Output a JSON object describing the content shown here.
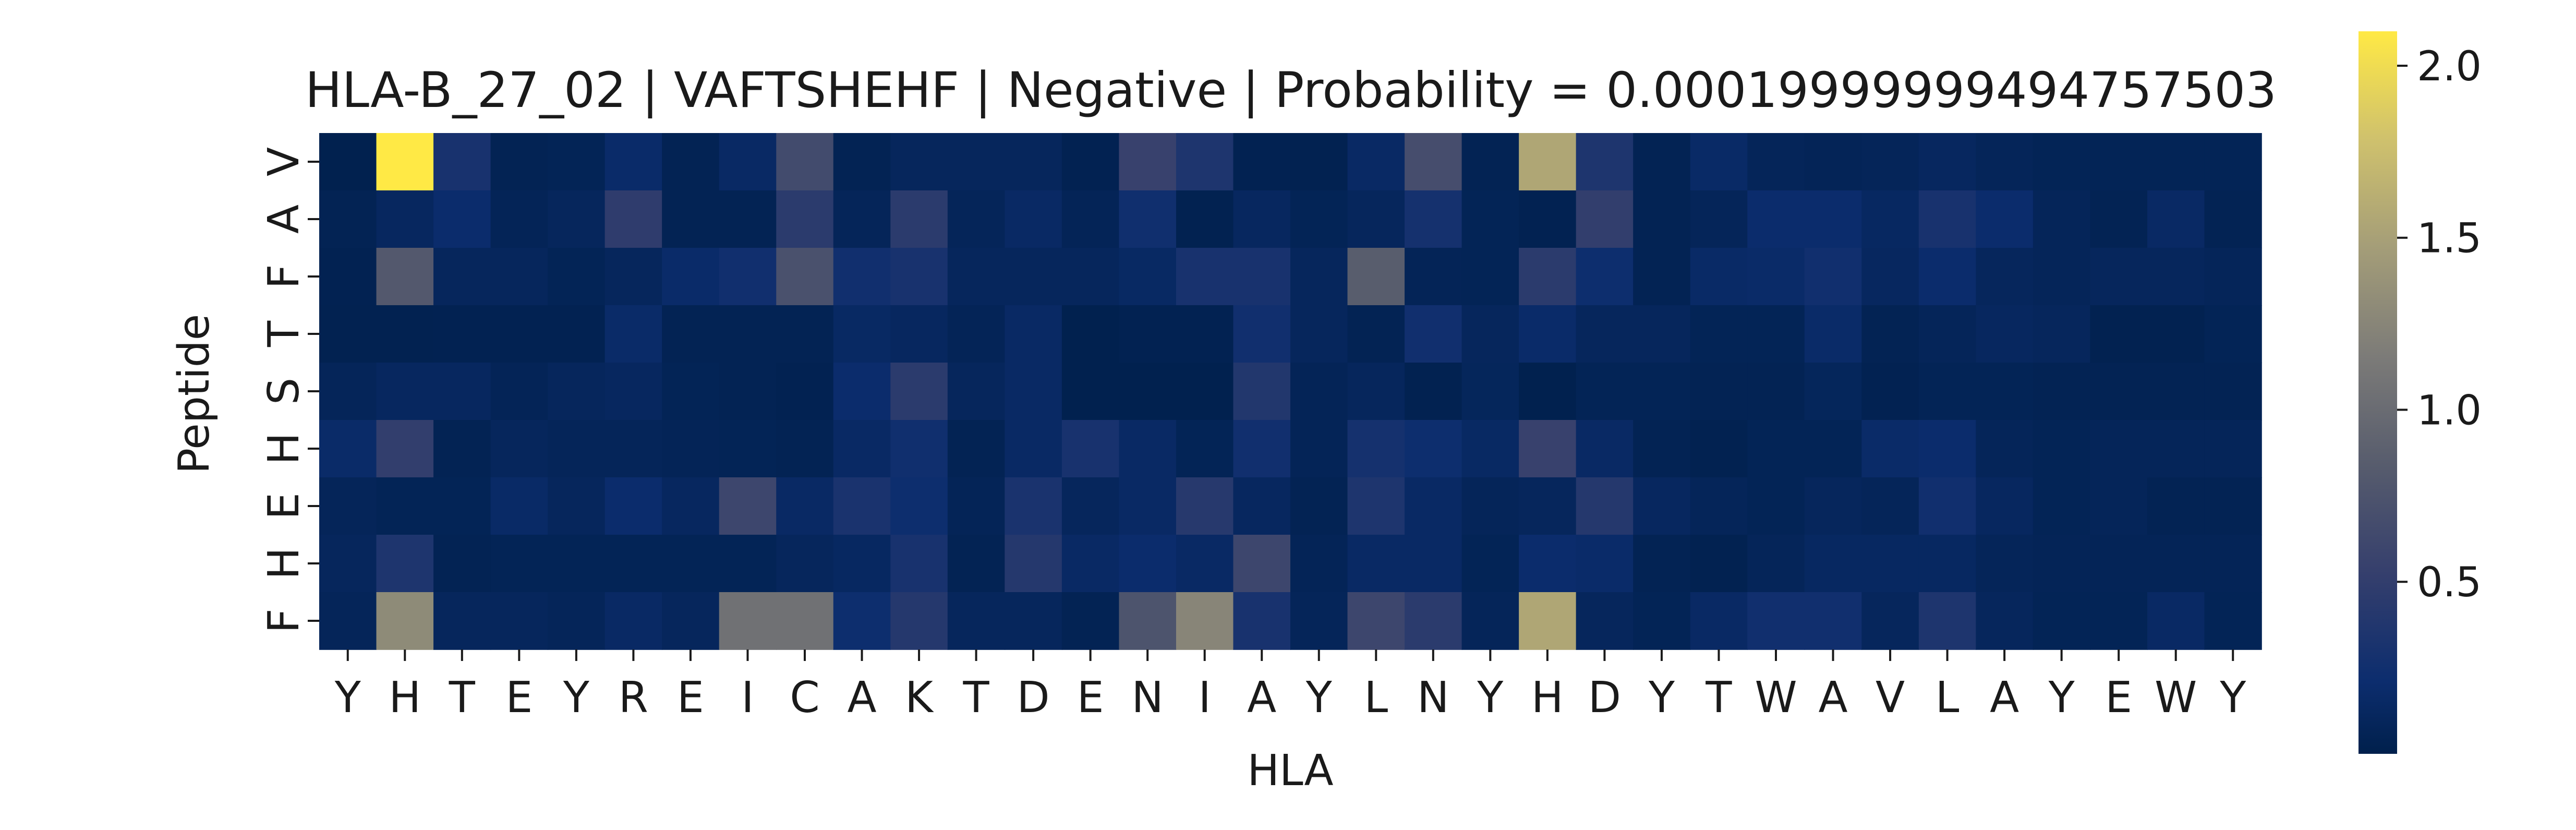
{
  "chart_data": {
    "type": "heatmap",
    "title": "HLA-B_27_02 | VAFTSHEHF | Negative | Probability = 0.00019999999494757503",
    "xlabel": "HLA",
    "ylabel": "Peptide",
    "x_categories": [
      "Y",
      "H",
      "T",
      "E",
      "Y",
      "R",
      "E",
      "I",
      "C",
      "A",
      "K",
      "T",
      "D",
      "E",
      "N",
      "I",
      "A",
      "Y",
      "L",
      "N",
      "Y",
      "H",
      "D",
      "Y",
      "T",
      "W",
      "A",
      "V",
      "L",
      "A",
      "Y",
      "E",
      "W",
      "Y"
    ],
    "y_categories": [
      "V",
      "A",
      "F",
      "T",
      "S",
      "H",
      "E",
      "H",
      "F"
    ],
    "values": [
      [
        0.02,
        2.1,
        0.3,
        0.05,
        0.06,
        0.18,
        0.05,
        0.15,
        0.65,
        0.05,
        0.1,
        0.1,
        0.1,
        0.04,
        0.55,
        0.35,
        0.04,
        0.03,
        0.15,
        0.68,
        0.05,
        1.55,
        0.35,
        0.05,
        0.16,
        0.08,
        0.07,
        0.08,
        0.12,
        0.08,
        0.06,
        0.06,
        0.06,
        0.06
      ],
      [
        0.05,
        0.12,
        0.2,
        0.07,
        0.1,
        0.48,
        0.05,
        0.05,
        0.45,
        0.08,
        0.45,
        0.08,
        0.15,
        0.07,
        0.24,
        0.03,
        0.12,
        0.06,
        0.1,
        0.28,
        0.06,
        0.04,
        0.5,
        0.05,
        0.08,
        0.2,
        0.2,
        0.13,
        0.3,
        0.2,
        0.08,
        0.05,
        0.15,
        0.05
      ],
      [
        0.04,
        0.8,
        0.1,
        0.1,
        0.06,
        0.1,
        0.18,
        0.25,
        0.72,
        0.25,
        0.3,
        0.1,
        0.1,
        0.1,
        0.14,
        0.3,
        0.3,
        0.1,
        0.85,
        0.07,
        0.06,
        0.45,
        0.22,
        0.05,
        0.16,
        0.17,
        0.25,
        0.12,
        0.2,
        0.1,
        0.08,
        0.1,
        0.1,
        0.08
      ],
      [
        0.03,
        0.03,
        0.04,
        0.04,
        0.04,
        0.17,
        0.05,
        0.05,
        0.05,
        0.14,
        0.12,
        0.07,
        0.15,
        0.02,
        0.04,
        0.04,
        0.25,
        0.1,
        0.05,
        0.25,
        0.1,
        0.18,
        0.1,
        0.1,
        0.06,
        0.06,
        0.17,
        0.05,
        0.08,
        0.12,
        0.1,
        0.03,
        0.03,
        0.06
      ],
      [
        0.08,
        0.12,
        0.12,
        0.07,
        0.1,
        0.12,
        0.06,
        0.05,
        0.04,
        0.2,
        0.45,
        0.1,
        0.15,
        0.02,
        0.02,
        0.02,
        0.38,
        0.07,
        0.1,
        0.03,
        0.09,
        0.02,
        0.06,
        0.06,
        0.05,
        0.05,
        0.09,
        0.04,
        0.06,
        0.06,
        0.05,
        0.05,
        0.05,
        0.05
      ],
      [
        0.17,
        0.5,
        0.05,
        0.1,
        0.08,
        0.08,
        0.07,
        0.06,
        0.05,
        0.15,
        0.24,
        0.05,
        0.15,
        0.3,
        0.15,
        0.06,
        0.25,
        0.07,
        0.28,
        0.22,
        0.14,
        0.55,
        0.15,
        0.05,
        0.03,
        0.06,
        0.06,
        0.17,
        0.2,
        0.08,
        0.06,
        0.08,
        0.08,
        0.08
      ],
      [
        0.08,
        0.06,
        0.06,
        0.16,
        0.1,
        0.2,
        0.12,
        0.6,
        0.15,
        0.32,
        0.22,
        0.07,
        0.32,
        0.1,
        0.15,
        0.42,
        0.12,
        0.05,
        0.35,
        0.15,
        0.08,
        0.1,
        0.4,
        0.12,
        0.08,
        0.06,
        0.1,
        0.08,
        0.25,
        0.12,
        0.06,
        0.08,
        0.05,
        0.05
      ],
      [
        0.1,
        0.35,
        0.05,
        0.06,
        0.06,
        0.06,
        0.06,
        0.06,
        0.1,
        0.13,
        0.3,
        0.05,
        0.4,
        0.15,
        0.2,
        0.15,
        0.6,
        0.07,
        0.15,
        0.15,
        0.06,
        0.2,
        0.18,
        0.05,
        0.03,
        0.08,
        0.13,
        0.13,
        0.13,
        0.08,
        0.07,
        0.07,
        0.07,
        0.07
      ],
      [
        0.08,
        1.3,
        0.1,
        0.1,
        0.08,
        0.15,
        0.1,
        1.05,
        1.05,
        0.22,
        0.4,
        0.1,
        0.1,
        0.05,
        0.75,
        1.25,
        0.3,
        0.08,
        0.6,
        0.45,
        0.08,
        1.55,
        0.1,
        0.06,
        0.15,
        0.25,
        0.25,
        0.1,
        0.35,
        0.1,
        0.06,
        0.06,
        0.15,
        0.06
      ]
    ],
    "colormap": "cividis",
    "vmin": 0.0,
    "vmax": 2.1,
    "colorbar_ticks": [
      0.5,
      1.0,
      1.5,
      2.0
    ],
    "colorbar_tick_labels": [
      "0.5",
      "1.0",
      "1.5",
      "2.0"
    ],
    "grid": false,
    "legend": "colorbar-right"
  }
}
